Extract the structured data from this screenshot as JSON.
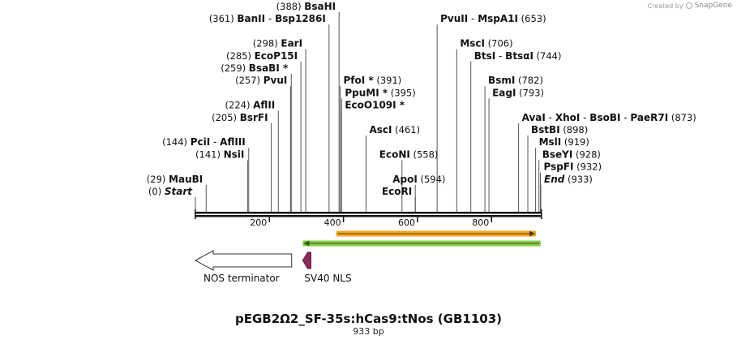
{
  "credit": {
    "created_by": "Created by",
    "brand": "SnapGene"
  },
  "colors": {
    "feature_orange": "#f5a623",
    "feature_green": "#7cd04a",
    "sv40": "#8b2a5a"
  },
  "map": {
    "title": "pEGB2Ω2_SF-35s:hCas9:tNos (GB1103)",
    "length_label": "933 bp",
    "total_bp": 933,
    "ticks": [
      200,
      400,
      600,
      800
    ],
    "sites": [
      {
        "bp": 0,
        "row": 0,
        "side": "left",
        "names": [
          "Start"
        ],
        "pos": "(0)",
        "terminal": true
      },
      {
        "bp": 29,
        "row": 1,
        "side": "left",
        "names": [
          "MauBI"
        ],
        "pos": "(29)"
      },
      {
        "bp": 141,
        "row": 3,
        "side": "left",
        "names": [
          "NsiI"
        ],
        "pos": "(141)"
      },
      {
        "bp": 144,
        "row": 4,
        "side": "left",
        "names": [
          "PciI",
          "AflIII"
        ],
        "pos": "(144)"
      },
      {
        "bp": 205,
        "row": 6,
        "side": "left",
        "names": [
          "BsrFI"
        ],
        "pos": "(205)"
      },
      {
        "bp": 224,
        "row": 7,
        "side": "left",
        "names": [
          "AflII"
        ],
        "pos": "(224)"
      },
      {
        "bp": 257,
        "row": 9,
        "side": "left",
        "names": [
          "PvuI"
        ],
        "pos": "(257)"
      },
      {
        "bp": 259,
        "row": 10,
        "side": "left",
        "names": [
          "BsaBI *"
        ],
        "pos": "(259)"
      },
      {
        "bp": 285,
        "row": 11,
        "side": "left",
        "names": [
          "EcoP15I"
        ],
        "pos": "(285)"
      },
      {
        "bp": 298,
        "row": 12,
        "side": "left",
        "names": [
          "EarI"
        ],
        "pos": "(298)"
      },
      {
        "bp": 361,
        "row": 14,
        "side": "left",
        "names": [
          "BanII",
          "Bsp1286I"
        ],
        "pos": "(361)"
      },
      {
        "bp": 388,
        "row": 15,
        "side": "left",
        "names": [
          "BsaHI"
        ],
        "pos": "(388)"
      },
      {
        "bp": 391,
        "row": 9,
        "side": "right",
        "names": [
          "PfoI *"
        ],
        "pos": "(391)"
      },
      {
        "bp": 395,
        "row": 8,
        "side": "right",
        "names": [
          "PpuMI *"
        ],
        "pos": "(395)"
      },
      {
        "bp": 395,
        "row": 7,
        "side": "right",
        "names": [
          "EcoO109I *"
        ],
        "pos": ""
      },
      {
        "bp": 461,
        "row": 5,
        "side": "right",
        "names": [
          "AscI"
        ],
        "pos": "(461)"
      },
      {
        "bp": 558,
        "row": 3,
        "side": "left",
        "names": [
          "EcoNI"
        ],
        "pos": "(558)",
        "pos_after": true
      },
      {
        "bp": 594,
        "row": 1,
        "side": "left",
        "names": [
          "ApoI"
        ],
        "pos": "(594)",
        "pos_after": true
      },
      {
        "bp": 594,
        "row": 0,
        "side": "left",
        "names": [
          "EcoRI"
        ],
        "pos": ""
      },
      {
        "bp": 653,
        "row": 14,
        "side": "right",
        "names": [
          "PvuII",
          "MspA1I"
        ],
        "pos": "(653)"
      },
      {
        "bp": 706,
        "row": 12,
        "side": "right",
        "names": [
          "MscI"
        ],
        "pos": "(706)"
      },
      {
        "bp": 744,
        "row": 11,
        "side": "right",
        "names": [
          "BtsI",
          "BtsαI"
        ],
        "pos": "(744)"
      },
      {
        "bp": 782,
        "row": 9,
        "side": "right",
        "names": [
          "BsmI"
        ],
        "pos": "(782)"
      },
      {
        "bp": 793,
        "row": 8,
        "side": "right",
        "names": [
          "EagI"
        ],
        "pos": "(793)"
      },
      {
        "bp": 873,
        "row": 6,
        "side": "right",
        "names": [
          "AvaI",
          "XhoI",
          "BsoBI",
          "PaeR7I"
        ],
        "pos": "(873)"
      },
      {
        "bp": 898,
        "row": 5,
        "side": "right",
        "names": [
          "BstBI"
        ],
        "pos": "(898)"
      },
      {
        "bp": 919,
        "row": 4,
        "side": "right",
        "names": [
          "MslI"
        ],
        "pos": "(919)"
      },
      {
        "bp": 928,
        "row": 3,
        "side": "right",
        "names": [
          "BseYI"
        ],
        "pos": "(928)"
      },
      {
        "bp": 932,
        "row": 2,
        "side": "right",
        "names": [
          "PspFI"
        ],
        "pos": "(932)"
      },
      {
        "bp": 933,
        "row": 1,
        "side": "right",
        "names": [
          "End"
        ],
        "pos": "(933)",
        "terminal": true
      }
    ],
    "features": [
      {
        "name": "orange-feature",
        "start": 380,
        "end": 920,
        "strand": "forward",
        "color": "#f5a623",
        "track": 0
      },
      {
        "name": "green-feature",
        "start": 290,
        "end": 933,
        "strand": "reverse",
        "color": "#7cd04a",
        "track": 1
      }
    ],
    "elements": [
      {
        "label": "NOS terminator",
        "start": 0,
        "end": 260,
        "shape": "arrow-left",
        "color": "#ffffff"
      },
      {
        "label": "SV40 NLS",
        "start": 290,
        "end": 312,
        "shape": "pentagon-left",
        "color": "#8b2a5a"
      }
    ]
  }
}
